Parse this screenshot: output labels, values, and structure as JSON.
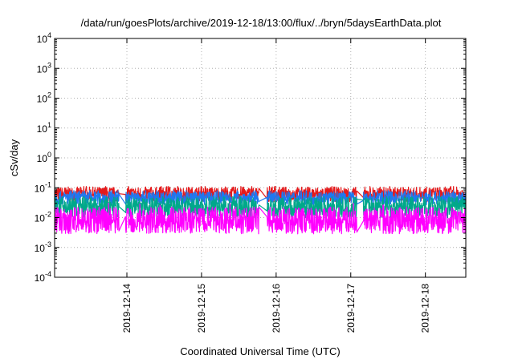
{
  "chart_data": {
    "type": "line",
    "title": "/data/run/goesPlots/archive/2019-12-18/13:00/flux/../bryn/5daysEarthData.plot",
    "xlabel": "Coordinated Universal Time (UTC)",
    "ylabel": "cSv/day",
    "y_scale": "log",
    "ylim": [
      0.0001,
      10000
    ],
    "y_ticks": [
      {
        "base": "10",
        "exp": "4"
      },
      {
        "base": "10",
        "exp": "3"
      },
      {
        "base": "10",
        "exp": "2"
      },
      {
        "base": "10",
        "exp": "1"
      },
      {
        "base": "10",
        "exp": "0"
      },
      {
        "base": "10",
        "exp": "-1"
      },
      {
        "base": "10",
        "exp": "-2"
      },
      {
        "base": "10",
        "exp": "-3"
      },
      {
        "base": "10",
        "exp": "-4"
      }
    ],
    "x_range": [
      "2019-12-13 00:45",
      "2019-12-18 13:00"
    ],
    "x_ticks": [
      "2019-12-14",
      "2019-12-15",
      "2019-12-16",
      "2019-12-17",
      "2019-12-18"
    ],
    "grid": true,
    "legend": "none",
    "series": [
      {
        "color": "#e41a1c",
        "baseline": 0.06,
        "noise": 0.25,
        "spike_max": 0.11
      },
      {
        "color": "#1f78f0",
        "baseline": 0.045,
        "noise": 0.22,
        "spike_max": 0.08
      },
      {
        "color": "#00a88a",
        "baseline": 0.022,
        "noise": 0.35,
        "spike_max": 0.05
      },
      {
        "color": "#ff00ff",
        "baseline": 0.008,
        "noise": 0.45,
        "spike_max": 0.03
      }
    ],
    "gaps": [
      {
        "start": "2019-12-13 21:30",
        "end": "2019-12-13 23:30"
      },
      {
        "start": "2019-12-15 18:30",
        "end": "2019-12-15 21:00"
      },
      {
        "start": "2019-12-17 02:00",
        "end": "2019-12-17 04:00"
      }
    ]
  }
}
